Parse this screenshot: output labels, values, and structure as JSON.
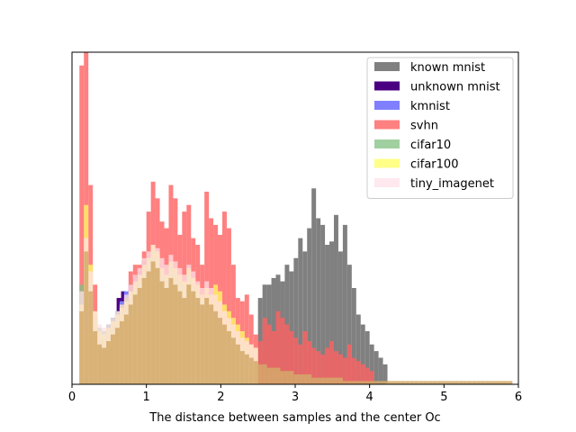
{
  "chart_data": {
    "type": "bar",
    "subtype": "overlapping histogram",
    "xlabel": "The distance between samples and the center Oc",
    "ylabel": "",
    "title": "",
    "xlim": [
      0,
      6
    ],
    "ylim": [
      0,
      1.0
    ],
    "x_ticks": [
      "0",
      "1",
      "2",
      "3",
      "4",
      "5",
      "6"
    ],
    "y_ticks_visible": false,
    "grid": false,
    "legend_position": "top-right",
    "bin_width": 0.06,
    "series": [
      {
        "name": "known mnist",
        "color": "#808080",
        "opacity": 1.0,
        "x_start": 2.5,
        "values": [
          0.26,
          0.3,
          0.3,
          0.32,
          0.33,
          0.31,
          0.36,
          0.34,
          0.38,
          0.44,
          0.4,
          0.47,
          0.59,
          0.5,
          0.48,
          0.42,
          0.43,
          0.51,
          0.4,
          0.48,
          0.36,
          0.29,
          0.21,
          0.18,
          0.16,
          0.12,
          0.1,
          0.08,
          0.06
        ]
      },
      {
        "name": "unknown mnist",
        "color": "#4b0082",
        "opacity": 1.0,
        "x_start": 0.6,
        "values": [
          0.26,
          0.28,
          0.24,
          0.3,
          0.33,
          0.28,
          0.25
        ]
      },
      {
        "name": "kmnist",
        "color": "#8080ff",
        "opacity": 1.0,
        "x_start": 0.4,
        "values": [
          0.14,
          0.18,
          0.2,
          0.22,
          0.25,
          0.28,
          0.3,
          0.32,
          0.34,
          0.37,
          0.34,
          0.32
        ]
      },
      {
        "name": "svhn",
        "color": "#ff6060",
        "opacity": 0.8,
        "x_start": 0.1,
        "values": [
          0.96,
          1.0,
          0.6,
          0.3,
          0.16,
          0.14,
          0.16,
          0.19,
          0.21,
          0.24,
          0.26,
          0.34,
          0.36,
          0.36,
          0.4,
          0.52,
          0.61,
          0.56,
          0.49,
          0.47,
          0.6,
          0.56,
          0.45,
          0.52,
          0.54,
          0.44,
          0.42,
          0.36,
          0.58,
          0.5,
          0.48,
          0.45,
          0.52,
          0.47,
          0.36,
          0.26,
          0.25,
          0.27,
          0.21,
          0.15,
          0.13,
          0.2,
          0.18,
          0.16,
          0.22,
          0.2,
          0.18,
          0.16,
          0.14,
          0.12,
          0.16,
          0.13,
          0.11,
          0.1,
          0.09,
          0.11,
          0.13,
          0.1,
          0.09,
          0.08,
          0.12,
          0.08,
          0.07,
          0.06,
          0.05,
          0.04
        ]
      },
      {
        "name": "cifar10",
        "color": "#80c080",
        "opacity": 0.75,
        "x_start": 0.1,
        "values": [
          0.3,
          0.38,
          0.3,
          0.2,
          0.17,
          0.16,
          0.18,
          0.2,
          0.22,
          0.24,
          0.26,
          0.28,
          0.3,
          0.31,
          0.34,
          0.38,
          0.4,
          0.38,
          0.34,
          0.32,
          0.36,
          0.34,
          0.31,
          0.3,
          0.33,
          0.3,
          0.28,
          0.26,
          0.24,
          0.22,
          0.2,
          0.18,
          0.16,
          0.15,
          0.14,
          0.12,
          0.11,
          0.1
        ]
      },
      {
        "name": "cifar100",
        "color": "#ffff60",
        "opacity": 0.75,
        "x_start": 0.1,
        "values": [
          0.24,
          0.54,
          0.36,
          0.22,
          0.16,
          0.15,
          0.17,
          0.19,
          0.21,
          0.23,
          0.25,
          0.28,
          0.31,
          0.33,
          0.36,
          0.38,
          0.42,
          0.4,
          0.35,
          0.33,
          0.37,
          0.35,
          0.33,
          0.31,
          0.35,
          0.32,
          0.3,
          0.27,
          0.29,
          0.27,
          0.3,
          0.28,
          0.24,
          0.22,
          0.2,
          0.18,
          0.16,
          0.14,
          0.12,
          0.11
        ]
      },
      {
        "name": "tiny_imagenet",
        "color": "#ffe0e8",
        "opacity": 0.75,
        "x_start": 0.1,
        "values": [
          0.28,
          0.44,
          0.34,
          0.22,
          0.18,
          0.17,
          0.18,
          0.2,
          0.22,
          0.24,
          0.27,
          0.3,
          0.33,
          0.35,
          0.38,
          0.4,
          0.42,
          0.41,
          0.38,
          0.36,
          0.39,
          0.37,
          0.35,
          0.33,
          0.36,
          0.34,
          0.31,
          0.29,
          0.31,
          0.29,
          0.27,
          0.25,
          0.22,
          0.2,
          0.18,
          0.16,
          0.14,
          0.13,
          0.12,
          0.11
        ]
      }
    ],
    "overlap_color": "#d4a96a",
    "overlap_series": {
      "name": "",
      "x_start": 0.1,
      "values": [
        0.22,
        0.4,
        0.28,
        0.16,
        0.12,
        0.11,
        0.13,
        0.15,
        0.17,
        0.19,
        0.21,
        0.24,
        0.27,
        0.29,
        0.32,
        0.34,
        0.37,
        0.35,
        0.31,
        0.29,
        0.32,
        0.3,
        0.28,
        0.26,
        0.3,
        0.28,
        0.26,
        0.24,
        0.26,
        0.24,
        0.22,
        0.2,
        0.18,
        0.16,
        0.14,
        0.12,
        0.1,
        0.09,
        0.08,
        0.07,
        0.06,
        0.06,
        0.05,
        0.05,
        0.05,
        0.04,
        0.04,
        0.04,
        0.03,
        0.03,
        0.03,
        0.03,
        0.02,
        0.02,
        0.02,
        0.02,
        0.02,
        0.02,
        0.02,
        0.01,
        0.01,
        0.01,
        0.01,
        0.01,
        0.01,
        0.01,
        0.01,
        0.01,
        0.01,
        0.01,
        0.01,
        0.01,
        0.01,
        0.01,
        0.01,
        0.01,
        0.01,
        0.01,
        0.01,
        0.01,
        0.01,
        0.01,
        0.01,
        0.01,
        0.01,
        0.01,
        0.01,
        0.01,
        0.01,
        0.01,
        0.01,
        0.01,
        0.01,
        0.01,
        0.01,
        0.01,
        0.01
      ]
    }
  }
}
